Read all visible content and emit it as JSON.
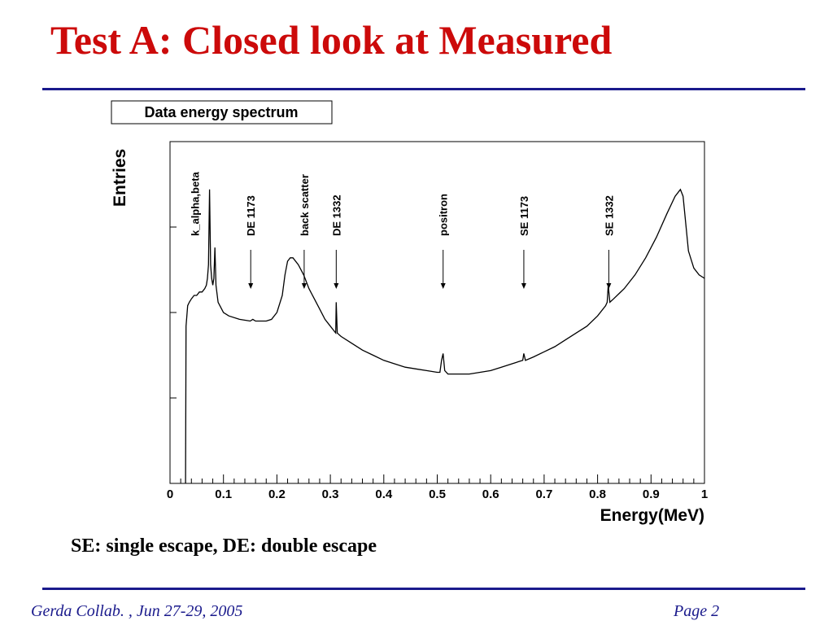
{
  "slide": {
    "title": "Test A: Closed look at Measured",
    "subtitle": "SE: single escape, DE: double escape",
    "footer_left": "Gerda Collab. , Jun 27-29, 2005",
    "footer_right": "Page 2"
  },
  "colors": {
    "title": "#cc0a0a",
    "rule": "#1a1a8c",
    "plot_line": "#000000"
  },
  "chart_data": {
    "type": "line",
    "title": "Data energy spectrum",
    "xlabel": "Energy(MeV)",
    "ylabel": "Entries",
    "xlim": [
      0,
      1
    ],
    "ylim": [
      0,
      100
    ],
    "y_tick_labels_shown": false,
    "x_ticks": [
      "0",
      "0.1",
      "0.2",
      "0.3",
      "0.4",
      "0.5",
      "0.6",
      "0.7",
      "0.8",
      "0.9",
      "1"
    ],
    "grid": false,
    "series": [
      {
        "points": [
          [
            0.029,
            0
          ],
          [
            0.03,
            46
          ],
          [
            0.033,
            52
          ],
          [
            0.036,
            53
          ],
          [
            0.04,
            54
          ],
          [
            0.045,
            55
          ],
          [
            0.05,
            55
          ],
          [
            0.055,
            56
          ],
          [
            0.06,
            56
          ],
          [
            0.065,
            57
          ],
          [
            0.068,
            58
          ],
          [
            0.07,
            60
          ],
          [
            0.072,
            64
          ],
          [
            0.074,
            86
          ],
          [
            0.076,
            64
          ],
          [
            0.078,
            60
          ],
          [
            0.08,
            58
          ],
          [
            0.082,
            60
          ],
          [
            0.084,
            69
          ],
          [
            0.086,
            58
          ],
          [
            0.09,
            53
          ],
          [
            0.1,
            50
          ],
          [
            0.11,
            49
          ],
          [
            0.13,
            48
          ],
          [
            0.15,
            47.5
          ],
          [
            0.155,
            48
          ],
          [
            0.16,
            47.5
          ],
          [
            0.18,
            47.5
          ],
          [
            0.19,
            48
          ],
          [
            0.2,
            50
          ],
          [
            0.21,
            55
          ],
          [
            0.215,
            61
          ],
          [
            0.22,
            65
          ],
          [
            0.225,
            66
          ],
          [
            0.23,
            66
          ],
          [
            0.24,
            64
          ],
          [
            0.25,
            61
          ],
          [
            0.26,
            57
          ],
          [
            0.27,
            54
          ],
          [
            0.28,
            51
          ],
          [
            0.29,
            48
          ],
          [
            0.3,
            46
          ],
          [
            0.305,
            45
          ],
          [
            0.31,
            44
          ],
          [
            0.311,
            53
          ],
          [
            0.313,
            44
          ],
          [
            0.32,
            43
          ],
          [
            0.34,
            41
          ],
          [
            0.36,
            39
          ],
          [
            0.38,
            37.5
          ],
          [
            0.4,
            36
          ],
          [
            0.42,
            35
          ],
          [
            0.44,
            34
          ],
          [
            0.46,
            33.5
          ],
          [
            0.48,
            33
          ],
          [
            0.5,
            32.5
          ],
          [
            0.505,
            32.5
          ],
          [
            0.508,
            36
          ],
          [
            0.511,
            38
          ],
          [
            0.514,
            33
          ],
          [
            0.52,
            32
          ],
          [
            0.54,
            32
          ],
          [
            0.56,
            32
          ],
          [
            0.58,
            32.5
          ],
          [
            0.6,
            33
          ],
          [
            0.62,
            34
          ],
          [
            0.64,
            35
          ],
          [
            0.66,
            36
          ],
          [
            0.662,
            38
          ],
          [
            0.665,
            36
          ],
          [
            0.68,
            37
          ],
          [
            0.7,
            38.5
          ],
          [
            0.72,
            40
          ],
          [
            0.74,
            42
          ],
          [
            0.76,
            44
          ],
          [
            0.78,
            46
          ],
          [
            0.8,
            49
          ],
          [
            0.815,
            52
          ],
          [
            0.818,
            53
          ],
          [
            0.82,
            58
          ],
          [
            0.823,
            53
          ],
          [
            0.83,
            54
          ],
          [
            0.85,
            57
          ],
          [
            0.87,
            61
          ],
          [
            0.89,
            66
          ],
          [
            0.91,
            72
          ],
          [
            0.93,
            79
          ],
          [
            0.945,
            84
          ],
          [
            0.955,
            86
          ],
          [
            0.96,
            84
          ],
          [
            0.965,
            76
          ],
          [
            0.97,
            68
          ],
          [
            0.98,
            63
          ],
          [
            0.99,
            61
          ],
          [
            1.0,
            60
          ]
        ]
      }
    ],
    "annotations": [
      {
        "text": "k_alpha,beta",
        "x": 0.043,
        "arrow": false
      },
      {
        "text": "DE 1173",
        "x": 0.151,
        "arrow": true
      },
      {
        "text": "back scatter",
        "x": 0.251,
        "arrow": true
      },
      {
        "text": "DE 1332",
        "x": 0.311,
        "arrow": true
      },
      {
        "text": "positron",
        "x": 0.511,
        "arrow": true
      },
      {
        "text": "SE 1173",
        "x": 0.662,
        "arrow": true
      },
      {
        "text": "SE 1332",
        "x": 0.821,
        "arrow": true
      }
    ]
  }
}
